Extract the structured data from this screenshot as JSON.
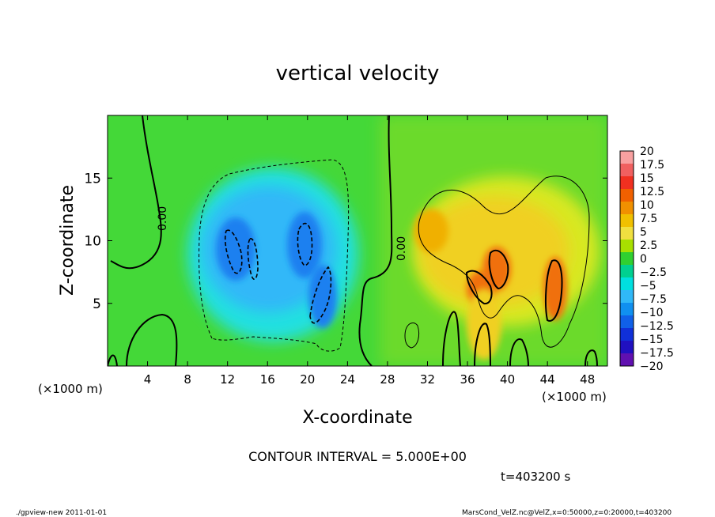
{
  "chart_data": {
    "type": "heatmap",
    "title": "vertical velocity",
    "xlabel": "X-coordinate",
    "ylabel": "Z-coordinate",
    "x_unit_left": "(×1000 m)",
    "x_unit_right": "(×1000 m)",
    "xlim": [
      0,
      50
    ],
    "ylim": [
      0,
      20
    ],
    "x_ticks": [
      "4",
      "8",
      "12",
      "16",
      "20",
      "24",
      "28",
      "32",
      "36",
      "40",
      "44",
      "48"
    ],
    "y_ticks": [
      "5",
      "10",
      "15"
    ],
    "colorbar_labels": [
      "20",
      "17.5",
      "15",
      "12.5",
      "10",
      "7.5",
      "5",
      "2.5",
      "0",
      "−2.5",
      "−5",
      "−7.5",
      "−10",
      "−12.5",
      "−15",
      "−17.5",
      "−20"
    ],
    "colorbar_colors": [
      "#f8a0a0",
      "#f06060",
      "#f03020",
      "#f06000",
      "#f09000",
      "#f0c000",
      "#f0e040",
      "#a8e000",
      "#30d030",
      "#00d090",
      "#00e0e0",
      "#30b8f8",
      "#1090f0",
      "#1060e8",
      "#1030d8",
      "#2010c0",
      "#6010b0"
    ],
    "contour_interval_text": "CONTOUR INTERVAL = 5.000E+00",
    "contour_zero_label": "0.00",
    "time_text": "t=403200 s",
    "features": [
      {
        "sign": "negative",
        "x": 12.5,
        "z": 9.2,
        "peak": -12.5
      },
      {
        "sign": "negative",
        "x": 14.5,
        "z": 8.5,
        "peak": -10
      },
      {
        "sign": "negative",
        "x": 19.8,
        "z": 9.5,
        "peak": -12.5
      },
      {
        "sign": "negative",
        "x": 21.5,
        "z": 5.5,
        "peak": -12.5
      },
      {
        "sign": "positive",
        "x": 39,
        "z": 8.0,
        "peak": 12.5
      },
      {
        "sign": "positive",
        "x": 37.5,
        "z": 6.5,
        "peak": 12.5
      },
      {
        "sign": "positive",
        "x": 44.5,
        "z": 6.5,
        "peak": 12.5
      },
      {
        "sign": "positive",
        "x": 32,
        "z": 10.5,
        "peak": 7.5
      }
    ]
  },
  "footer": {
    "left": "./gpview-new  2011-01-01",
    "right": "MarsCond_VelZ.nc@VelZ,x=0:50000,z=0:20000,t=403200"
  }
}
